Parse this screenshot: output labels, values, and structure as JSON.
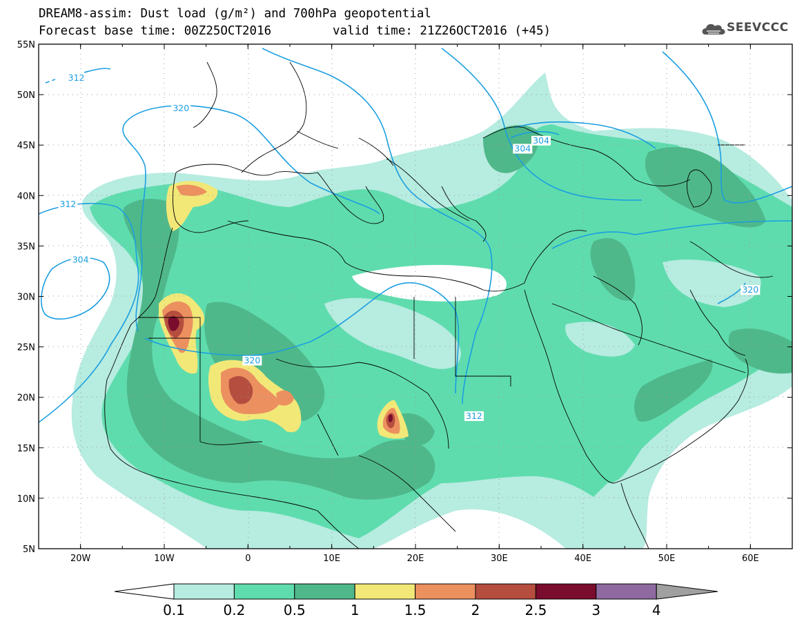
{
  "title": {
    "line1": "DREAM8-assim: Dust load (g/m²) and 700hPa geopotential",
    "line2": "Forecast base time: 00Z25OCT2016",
    "valid": "valid time: 21Z26OCT2016 (+45)"
  },
  "logo": {
    "text": "SEEVCCC",
    "icon": "cloud-logo-icon"
  },
  "axes": {
    "x_ticks": [
      "20W",
      "10W",
      "0",
      "10E",
      "20E",
      "30E",
      "40E",
      "50E",
      "60E"
    ],
    "y_ticks": [
      "55N",
      "50N",
      "45N",
      "40N",
      "35N",
      "30N",
      "25N",
      "20N",
      "15N",
      "10N",
      "5N"
    ],
    "lon_range": [
      -25,
      65
    ],
    "lat_range": [
      5,
      55
    ]
  },
  "contours": {
    "field": "700hPa geopotential",
    "color": "#1a9ee0",
    "labels": [
      {
        "text": "312",
        "lon": -20.5,
        "lat": 51.5
      },
      {
        "text": "320",
        "lon": -8,
        "lat": 48.5
      },
      {
        "text": "312",
        "lon": -21.5,
        "lat": 39
      },
      {
        "text": "304",
        "lon": -20,
        "lat": 33.5
      },
      {
        "text": "320",
        "lon": 0.5,
        "lat": 23.5
      },
      {
        "text": "312",
        "lon": 27,
        "lat": 18
      },
      {
        "text": "304",
        "lon": 32.8,
        "lat": 44.5
      },
      {
        "text": "304",
        "lon": 35,
        "lat": 45.3
      },
      {
        "text": "320",
        "lon": 60,
        "lat": 30.5
      }
    ]
  },
  "colorbar": {
    "labels": [
      "0.1",
      "0.2",
      "0.5",
      "1",
      "1.5",
      "2",
      "2.5",
      "3",
      "4"
    ],
    "colors": [
      "#ffffff",
      "#b7ece0",
      "#5fdcae",
      "#4fb88a",
      "#f2e878",
      "#ec9060",
      "#b54e3e",
      "#7a0c2e",
      "#8e6aa0",
      "#a0a0a0"
    ]
  }
}
